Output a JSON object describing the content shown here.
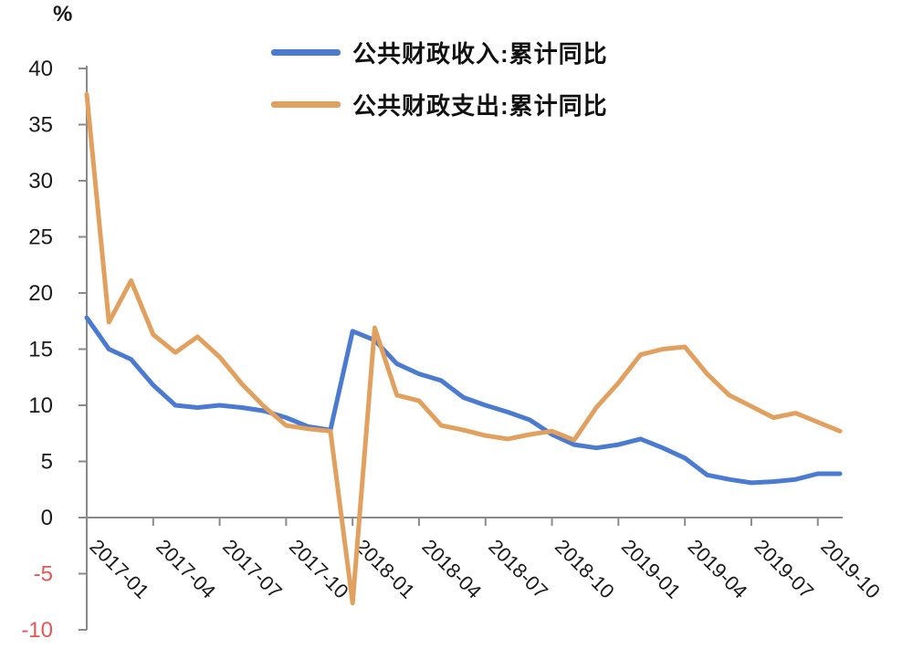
{
  "unit_label": "%",
  "chart_data": {
    "type": "line",
    "title": "",
    "xlabel": "",
    "ylabel": "%",
    "ylim": [
      -10,
      40
    ],
    "y_ticks": [
      40,
      35,
      30,
      25,
      20,
      15,
      10,
      5,
      0,
      -5,
      -10
    ],
    "grid": false,
    "legend_position": "top-center",
    "x": [
      "2017-01",
      "2017-02",
      "2017-03",
      "2017-04",
      "2017-05",
      "2017-06",
      "2017-07",
      "2017-08",
      "2017-09",
      "2017-10",
      "2017-11",
      "2017-12",
      "2018-01",
      "2018-02",
      "2018-03",
      "2018-04",
      "2018-05",
      "2018-06",
      "2018-07",
      "2018-08",
      "2018-09",
      "2018-10",
      "2018-11",
      "2018-12",
      "2019-01",
      "2019-02",
      "2019-03",
      "2019-04",
      "2019-05",
      "2019-06",
      "2019-07",
      "2019-08",
      "2019-09",
      "2019-10",
      "2019-11"
    ],
    "x_tick_labels": [
      "2017-01",
      "2017-04",
      "2017-07",
      "2017-10",
      "2018-01",
      "2018-04",
      "2018-07",
      "2018-10",
      "2019-01",
      "2019-04",
      "2019-07",
      "2019-10"
    ],
    "x_tick_every_n_months": 3,
    "series": [
      {
        "name": "公共财政收入:累计同比",
        "color": "#4a7bd0",
        "values": [
          17.8,
          15.0,
          14.1,
          11.8,
          10.0,
          9.8,
          10.0,
          9.8,
          9.5,
          8.9,
          8.1,
          7.8,
          16.6,
          15.8,
          13.7,
          12.8,
          12.2,
          10.7,
          10.0,
          9.4,
          8.7,
          7.4,
          6.5,
          6.2,
          6.5,
          7.0,
          6.2,
          5.3,
          3.8,
          3.4,
          3.1,
          3.2,
          3.4,
          3.9,
          3.9
        ]
      },
      {
        "name": "公共财政支出:累计同比",
        "color": "#e2a05e",
        "values": [
          37.7,
          17.4,
          21.1,
          16.3,
          14.7,
          16.1,
          14.3,
          11.9,
          9.9,
          8.2,
          7.9,
          7.7,
          -7.6,
          16.9,
          10.9,
          10.4,
          8.2,
          7.8,
          7.3,
          7.0,
          7.4,
          7.7,
          6.9,
          9.8,
          12.0,
          14.5,
          15.0,
          15.2,
          12.8,
          10.9,
          9.9,
          8.9,
          9.3,
          8.5,
          7.7
        ]
      }
    ],
    "colors": {
      "axis": "#8a8a8a",
      "tick_label": "#1a1a1a",
      "negative_tick_label": "#e25757"
    }
  }
}
